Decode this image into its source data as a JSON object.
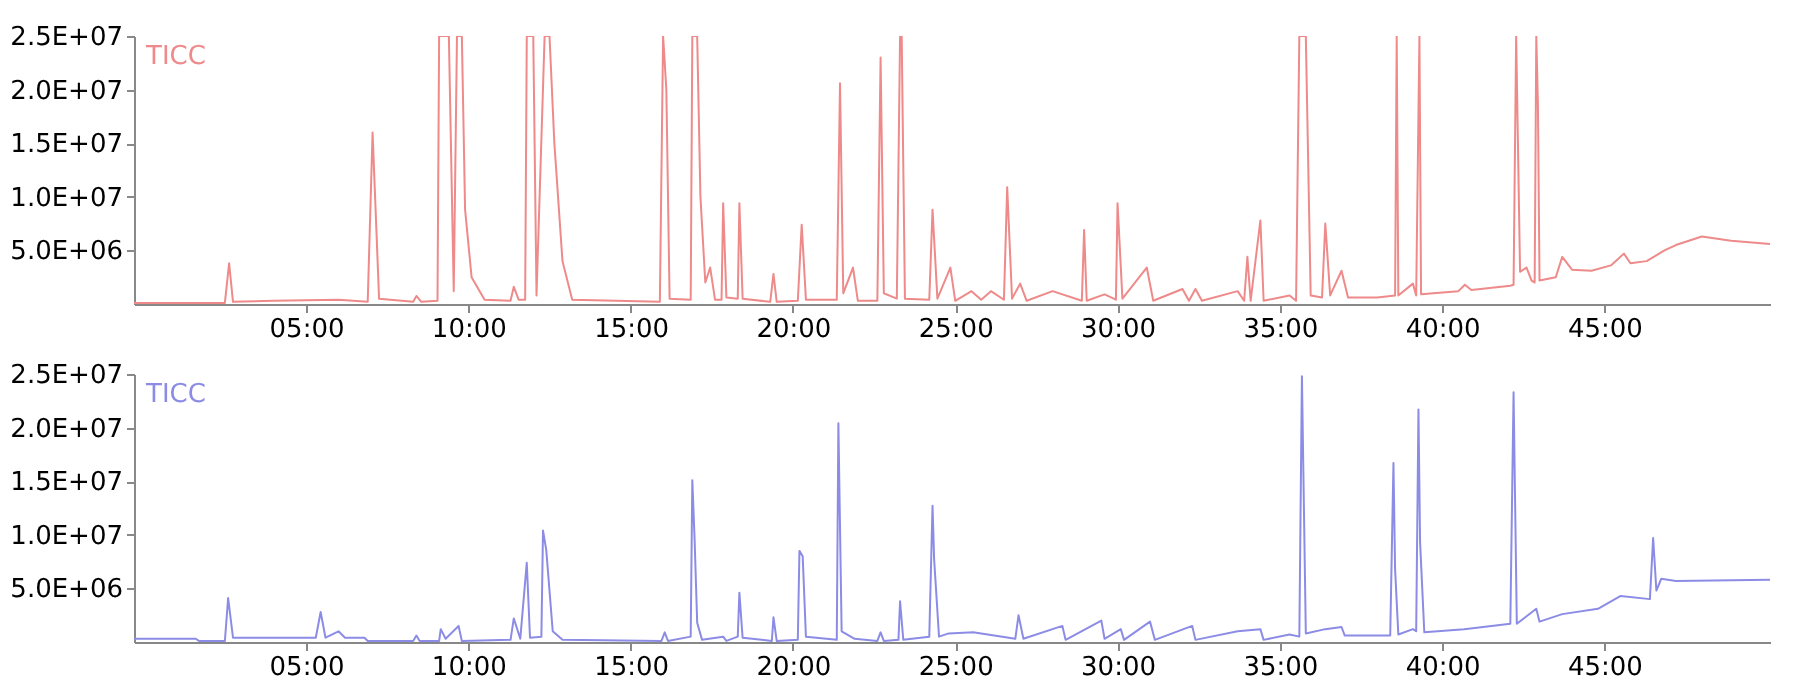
{
  "chart_data": [
    {
      "type": "line",
      "xlim": [
        -0.3,
        50.1
      ],
      "ylim": [
        0,
        25000000
      ],
      "grid": false,
      "marker": "none",
      "line_style": "solid",
      "xticks": [
        {
          "value": 5,
          "label": "05:00"
        },
        {
          "value": 10,
          "label": "10:00"
        },
        {
          "value": 15,
          "label": "15:00"
        },
        {
          "value": 20,
          "label": "20:00"
        },
        {
          "value": 25,
          "label": "25:00"
        },
        {
          "value": 30,
          "label": "30:00"
        },
        {
          "value": 35,
          "label": "35:00"
        },
        {
          "value": 40,
          "label": "40:00"
        },
        {
          "value": 45,
          "label": "45:00"
        }
      ],
      "yticks": [
        {
          "value": 5000000,
          "label": "5.0E+06"
        },
        {
          "value": 10000000,
          "label": "1.0E+07"
        },
        {
          "value": 15000000,
          "label": "1.5E+07"
        },
        {
          "value": 20000000,
          "label": "2.0E+07"
        },
        {
          "value": 25000000,
          "label": "2.5E+07"
        }
      ],
      "x": [
        -0.3,
        2.5,
        2.63,
        2.75,
        4.0,
        6.0,
        6.9,
        7.05,
        7.25,
        8.3,
        8.4,
        8.55,
        9.05,
        9.1,
        9.4,
        9.55,
        9.65,
        9.8,
        9.9,
        10.1,
        10.5,
        11.3,
        11.4,
        11.55,
        11.75,
        11.8,
        12.0,
        12.1,
        12.35,
        12.5,
        12.65,
        12.9,
        13.2,
        15.9,
        16.0,
        16.1,
        16.2,
        16.85,
        16.9,
        17.05,
        17.15,
        17.3,
        17.45,
        17.6,
        17.8,
        17.85,
        17.95,
        18.3,
        18.35,
        18.45,
        19.3,
        19.4,
        19.5,
        20.15,
        20.27,
        20.4,
        21.35,
        21.45,
        21.55,
        21.85,
        22.0,
        22.6,
        22.7,
        22.8,
        23.2,
        23.3,
        23.35,
        23.45,
        24.2,
        24.3,
        24.45,
        24.85,
        25.0,
        25.5,
        25.8,
        26.1,
        26.5,
        26.6,
        26.75,
        27.0,
        27.2,
        28.0,
        28.9,
        28.97,
        29.05,
        29.6,
        29.95,
        30.0,
        30.15,
        30.9,
        31.1,
        32.0,
        32.2,
        32.4,
        32.6,
        33.7,
        33.9,
        34.0,
        34.1,
        34.4,
        34.5,
        35.3,
        35.5,
        35.6,
        35.8,
        35.95,
        36.3,
        36.4,
        36.55,
        36.9,
        37.1,
        38.0,
        38.55,
        38.6,
        38.65,
        39.1,
        39.2,
        39.3,
        39.35,
        40.5,
        40.7,
        40.9,
        42.1,
        42.2,
        42.28,
        42.4,
        42.6,
        42.75,
        42.85,
        42.9,
        42.95,
        43.0,
        43.5,
        43.7,
        44.0,
        44.6,
        45.2,
        45.6,
        45.8,
        46.3,
        46.85,
        47.2,
        48.0,
        48.9,
        50.1
      ],
      "series": [
        {
          "name": "TICC",
          "color": "#ee8a8a",
          "values": [
            100000,
            100000,
            3800000,
            200000,
            300000,
            400000,
            200000,
            16000000,
            500000,
            200000,
            750000,
            200000,
            300000,
            25000000,
            25000000,
            1200000,
            25000000,
            25000000,
            8800000,
            2500000,
            400000,
            300000,
            1600000,
            400000,
            400000,
            25000000,
            25000000,
            800000,
            25000000,
            25000000,
            15000000,
            4000000,
            400000,
            200000,
            25000000,
            20000000,
            500000,
            400000,
            25000000,
            25000000,
            10000000,
            2000000,
            3400000,
            400000,
            400000,
            9400000,
            600000,
            500000,
            9400000,
            500000,
            200000,
            2800000,
            200000,
            300000,
            7400000,
            400000,
            400000,
            20600000,
            1000000,
            3400000,
            300000,
            300000,
            23000000,
            1000000,
            500000,
            25000000,
            25000000,
            500000,
            400000,
            8800000,
            500000,
            3400000,
            300000,
            1200000,
            400000,
            1200000,
            400000,
            10900000,
            500000,
            1900000,
            300000,
            1200000,
            300000,
            6900000,
            300000,
            900000,
            400000,
            9400000,
            500000,
            3400000,
            300000,
            1400000,
            300000,
            1400000,
            300000,
            1200000,
            300000,
            4400000,
            300000,
            7800000,
            300000,
            800000,
            300000,
            25000000,
            25000000,
            800000,
            600000,
            7500000,
            800000,
            3100000,
            600000,
            600000,
            800000,
            25000000,
            800000,
            1900000,
            800000,
            25000000,
            900000,
            1200000,
            1800000,
            1300000,
            1700000,
            1800000,
            25000000,
            3000000,
            3400000,
            2200000,
            2000000,
            25000000,
            18700000,
            2200000,
            2500000,
            4400000,
            3200000,
            3100000,
            3600000,
            4700000,
            3800000,
            4000000,
            5000000,
            5500000,
            6300000,
            5900000,
            5600000
          ]
        }
      ]
    },
    {
      "type": "line",
      "xlim": [
        -0.3,
        50.1
      ],
      "ylim": [
        0,
        25000000
      ],
      "grid": false,
      "marker": "none",
      "line_style": "solid",
      "xticks": [
        {
          "value": 5,
          "label": "05:00"
        },
        {
          "value": 10,
          "label": "10:00"
        },
        {
          "value": 15,
          "label": "15:00"
        },
        {
          "value": 20,
          "label": "20:00"
        },
        {
          "value": 25,
          "label": "25:00"
        },
        {
          "value": 30,
          "label": "30:00"
        },
        {
          "value": 35,
          "label": "35:00"
        },
        {
          "value": 40,
          "label": "40:00"
        },
        {
          "value": 45,
          "label": "45:00"
        }
      ],
      "yticks": [
        {
          "value": 5000000,
          "label": "5.0E+06"
        },
        {
          "value": 10000000,
          "label": "1.0E+07"
        },
        {
          "value": 15000000,
          "label": "1.5E+07"
        },
        {
          "value": 20000000,
          "label": "2.0E+07"
        },
        {
          "value": 25000000,
          "label": "2.5E+07"
        }
      ],
      "x": [
        -0.3,
        1.6,
        1.7,
        2.5,
        2.6,
        2.75,
        5.3,
        5.45,
        5.6,
        6.0,
        6.2,
        6.8,
        6.9,
        8.3,
        8.4,
        8.5,
        9.1,
        9.15,
        9.3,
        9.7,
        9.8,
        11.3,
        11.4,
        11.6,
        11.8,
        11.9,
        12.25,
        12.3,
        12.4,
        12.6,
        12.9,
        15.95,
        16.05,
        16.15,
        16.85,
        16.9,
        16.97,
        17.05,
        17.2,
        17.85,
        17.95,
        18.3,
        18.35,
        18.45,
        19.35,
        19.4,
        19.5,
        20.15,
        20.2,
        20.3,
        20.4,
        21.35,
        21.4,
        21.5,
        21.9,
        22.6,
        22.7,
        22.8,
        23.25,
        23.3,
        23.4,
        24.2,
        24.3,
        24.35,
        24.5,
        24.8,
        25.55,
        26.85,
        26.95,
        27.1,
        28.3,
        28.4,
        29.5,
        29.6,
        30.1,
        30.2,
        31.0,
        31.15,
        32.3,
        32.4,
        33.7,
        34.4,
        34.5,
        35.3,
        35.6,
        35.68,
        35.8,
        36.4,
        36.9,
        37.0,
        38.4,
        38.5,
        38.55,
        38.65,
        39.1,
        39.2,
        39.27,
        39.32,
        39.45,
        40.68,
        42.1,
        42.2,
        42.3,
        42.9,
        43.0,
        43.7,
        44.8,
        45.5,
        46.4,
        46.5,
        46.6,
        46.75,
        47.2,
        50.1
      ],
      "series": [
        {
          "name": "TICC",
          "color": "#8c8ce6",
          "values": [
            300000,
            300000,
            100000,
            100000,
            4100000,
            400000,
            400000,
            2800000,
            400000,
            1000000,
            400000,
            400000,
            100000,
            100000,
            600000,
            100000,
            100000,
            1200000,
            300000,
            1500000,
            100000,
            200000,
            2200000,
            300000,
            7400000,
            400000,
            500000,
            10400000,
            8600000,
            1000000,
            200000,
            100000,
            900000,
            100000,
            500000,
            15100000,
            9600000,
            1800000,
            200000,
            500000,
            100000,
            500000,
            4600000,
            400000,
            100000,
            2300000,
            100000,
            200000,
            8500000,
            8000000,
            500000,
            200000,
            20400000,
            1000000,
            300000,
            100000,
            900000,
            100000,
            200000,
            3800000,
            200000,
            500000,
            12700000,
            7700000,
            500000,
            800000,
            900000,
            300000,
            2500000,
            300000,
            1500000,
            200000,
            2000000,
            300000,
            1200000,
            200000,
            1900000,
            200000,
            1500000,
            200000,
            1000000,
            1200000,
            200000,
            700000,
            500000,
            24800000,
            800000,
            1200000,
            1400000,
            600000,
            600000,
            16700000,
            6800000,
            700000,
            1200000,
            1000000,
            21700000,
            9300000,
            900000,
            1200000,
            1700000,
            23300000,
            1700000,
            3100000,
            1900000,
            2600000,
            3100000,
            4300000,
            4000000,
            9700000,
            4800000,
            5900000,
            5700000,
            5800000
          ]
        }
      ]
    }
  ]
}
